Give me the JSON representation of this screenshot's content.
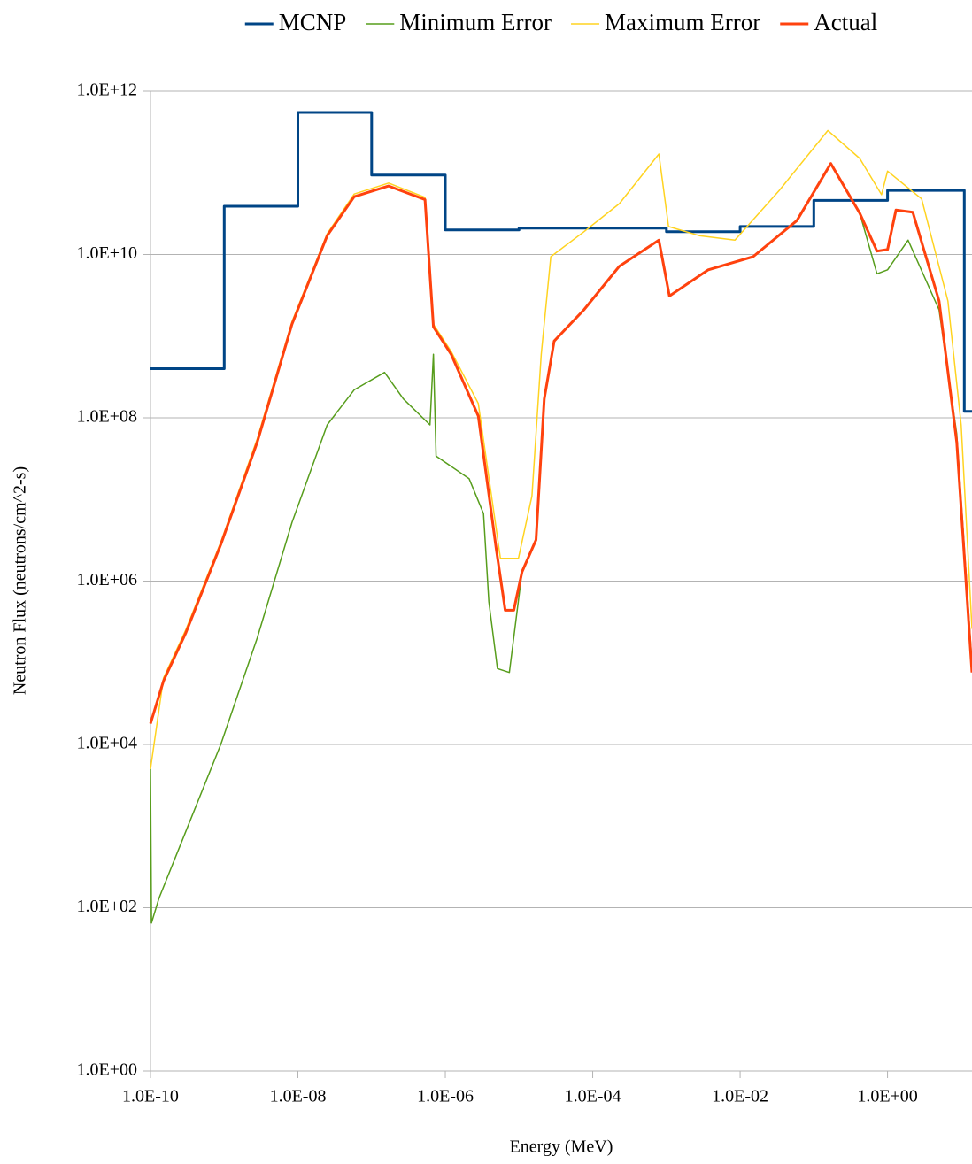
{
  "chart_data": {
    "type": "line",
    "x_label": "Energy (MeV)",
    "y_label": "Neutron Flux (neutrons/cm^2-s)",
    "xscale": "log",
    "yscale": "log",
    "grid": true,
    "legend": "top",
    "xlim": [
      1e-10,
      14
    ],
    "ylim": [
      1,
      1000000000000.0
    ],
    "xticks": [
      {
        "value": 1e-10,
        "label": "1.0E-10"
      },
      {
        "value": 1e-08,
        "label": "1.0E-08"
      },
      {
        "value": 1e-06,
        "label": "1.0E-06"
      },
      {
        "value": 0.0001,
        "label": "1.0E-04"
      },
      {
        "value": 0.01,
        "label": "1.0E-02"
      },
      {
        "value": 1,
        "label": "1.0E+00"
      }
    ],
    "yticks": [
      {
        "value": 1,
        "label": "1.0E+00"
      },
      {
        "value": 100,
        "label": "1.0E+02"
      },
      {
        "value": 10000,
        "label": "1.0E+04"
      },
      {
        "value": 1000000,
        "label": "1.0E+06"
      },
      {
        "value": 100000000,
        "label": "1.0E+08"
      },
      {
        "value": 10000000000,
        "label": "1.0E+10"
      },
      {
        "value": 1000000000000,
        "label": "1.0E+12"
      }
    ],
    "series": [
      {
        "name": "MCNP",
        "color": "#004586",
        "width": 3,
        "x": [
          1e-10,
          1e-09,
          1e-09,
          1e-08,
          1e-08,
          1e-07,
          1e-07,
          1e-06,
          1e-06,
          1e-05,
          1e-05,
          0.001,
          0.001,
          0.01,
          0.01,
          0.1,
          0.1,
          1,
          1,
          11,
          11,
          14
        ],
        "values": [
          400000000.0,
          400000000.0,
          39000000000.0,
          39000000000.0,
          550000000000.0,
          550000000000.0,
          94000000000.0,
          94000000000.0,
          20000000000.0,
          20000000000.0,
          21000000000.0,
          21000000000.0,
          19000000000.0,
          19000000000.0,
          22000000000.0,
          22000000000.0,
          46000000000.0,
          46000000000.0,
          61000000000.0,
          61000000000.0,
          120000000.0,
          120000000.0
        ]
      },
      {
        "name": "Minimum Error",
        "color": "#579d1c",
        "width": 1.5,
        "x": [
          1e-10,
          1.03e-10,
          1.3e-10,
          3e-10,
          9e-10,
          2.8e-09,
          8.3e-09,
          2.5e-08,
          5.8e-08,
          1.5e-07,
          2.7e-07,
          6.2e-07,
          6.9e-07,
          7.5e-07,
          2.1e-06,
          3.3e-06,
          3.9e-06,
          5.1e-06,
          7.4e-06,
          1.1e-05,
          1.7e-05,
          2.2e-05,
          3e-05,
          7.6e-05,
          0.00023,
          0.00079,
          0.0011,
          0.0037,
          0.015,
          0.059,
          0.17,
          0.42,
          0.72,
          1,
          1.9,
          5,
          8.7,
          14
        ],
        "values": [
          5000,
          65,
          130,
          850,
          10000,
          200000,
          5200000,
          82000000,
          220000000,
          360000000,
          170000000,
          82000000,
          600000000,
          34000000,
          18000000,
          6700000,
          560000,
          85000,
          76000,
          1300000,
          3200000,
          170000000,
          870000000,
          2100000000,
          7200000000,
          15000000000,
          3100000000,
          6500000000,
          9400000000,
          26000000000,
          130000000000,
          32000000000,
          5800000000,
          6500000000,
          15000000000,
          2100000000,
          63000000,
          98000
        ]
      },
      {
        "name": "Maximum Error",
        "color": "#ffd320",
        "width": 1.5,
        "x": [
          1e-10,
          1.5e-10,
          3e-10,
          9e-10,
          2.8e-09,
          8.3e-09,
          2.5e-08,
          5.8e-08,
          1.7e-07,
          5.3e-07,
          6.9e-07,
          1.2e-06,
          2.8e-06,
          5.6e-06,
          9.8e-06,
          1.5e-05,
          2e-05,
          2.7e-05,
          7.6e-05,
          0.00023,
          0.00079,
          0.00107,
          0.0028,
          0.0085,
          0.034,
          0.155,
          0.42,
          0.83,
          1,
          2.9,
          6.6,
          10,
          14
        ],
        "values": [
          5000,
          65000,
          250000,
          3000000,
          55000000,
          1500000000,
          18000000000,
          55000000000,
          75000000000,
          50000000000,
          1400000000,
          650000000,
          150000000,
          1900000,
          1900000,
          11000000,
          600000000,
          9400000000,
          19000000000,
          42000000000,
          170000000000,
          22000000000,
          17000000000,
          15000000000,
          61000000000,
          330000000000,
          150000000000,
          54000000000,
          105000000000,
          48000000000,
          2700000000,
          81000000,
          260000
        ]
      },
      {
        "name": "Actual",
        "color": "#ff420e",
        "width": 3,
        "x": [
          1e-10,
          1.5e-10,
          3e-10,
          9e-10,
          2.8e-09,
          8.3e-09,
          2.5e-08,
          5.8e-08,
          1.7e-07,
          5.3e-07,
          6.9e-07,
          1.2e-06,
          2.8e-06,
          4.9e-06,
          6.5e-06,
          8.5e-06,
          1.1e-05,
          1.7e-05,
          2.2e-05,
          3e-05,
          7.6e-05,
          0.00023,
          0.00079,
          0.0011,
          0.0037,
          0.015,
          0.059,
          0.17,
          0.42,
          0.72,
          1,
          1.3,
          2.2,
          5,
          8.7,
          14
        ],
        "values": [
          18000,
          60000,
          230000,
          2800000,
          50000000,
          1400000000,
          17000000000,
          51000000000,
          69000000000,
          47000000000,
          1300000000,
          600000000,
          105000000,
          2500000,
          440000,
          440000,
          1300000,
          3200000,
          170000000,
          870000000,
          2100000000,
          7200000000,
          15000000000,
          3100000000,
          6500000000,
          9400000000,
          26000000000,
          130000000000,
          32000000000,
          11000000000,
          11500000000,
          35000000000,
          33000000000,
          2700000000,
          50000000,
          76000
        ]
      }
    ]
  }
}
